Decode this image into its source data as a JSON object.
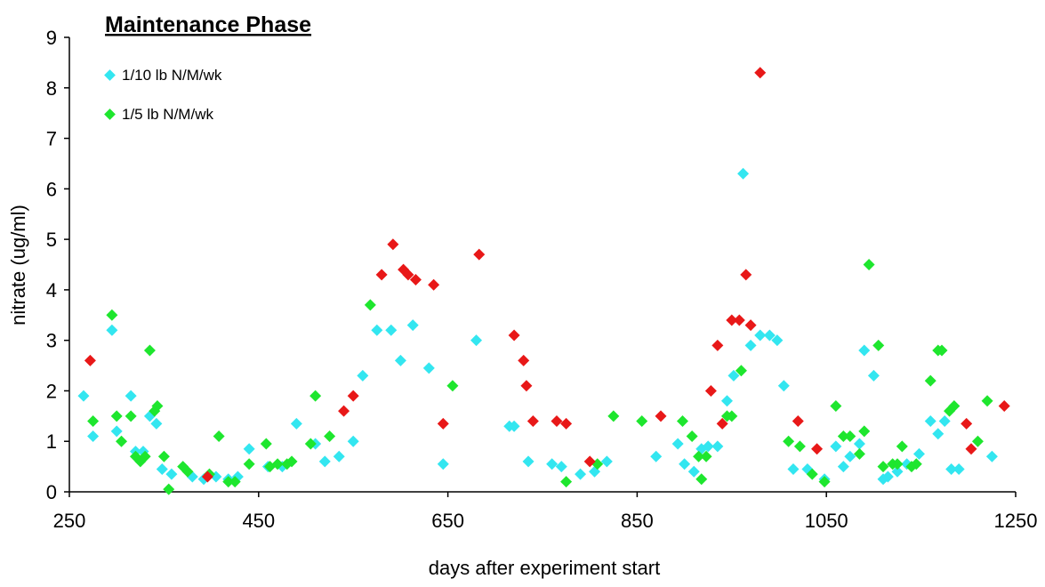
{
  "chart_data": {
    "type": "scatter",
    "title": "Maintenance Phase",
    "xlabel": "days after experiment start",
    "ylabel": "nitrate (ug/ml)",
    "xlim": [
      250,
      1250
    ],
    "ylim": [
      0,
      9
    ],
    "x_ticks": [
      "250",
      "450",
      "650",
      "850",
      "1050",
      "1250"
    ],
    "y_ticks": [
      "0",
      "1",
      "2",
      "3",
      "4",
      "5",
      "6",
      "7",
      "8",
      "9"
    ],
    "grid": false,
    "legend_position": "top-left",
    "series": [
      {
        "name": "1/10 lb N/M/wk",
        "color": "#33e6f0",
        "points": [
          [
            265,
            1.9
          ],
          [
            275,
            1.1
          ],
          [
            295,
            3.2
          ],
          [
            300,
            1.2
          ],
          [
            315,
            1.9
          ],
          [
            320,
            0.8
          ],
          [
            328,
            0.8
          ],
          [
            335,
            1.5
          ],
          [
            342,
            1.35
          ],
          [
            348,
            0.45
          ],
          [
            358,
            0.35
          ],
          [
            380,
            0.3
          ],
          [
            392,
            0.25
          ],
          [
            405,
            0.3
          ],
          [
            418,
            0.25
          ],
          [
            428,
            0.3
          ],
          [
            440,
            0.85
          ],
          [
            460,
            0.5
          ],
          [
            475,
            0.5
          ],
          [
            490,
            1.35
          ],
          [
            510,
            0.95
          ],
          [
            520,
            0.6
          ],
          [
            535,
            0.7
          ],
          [
            550,
            1.0
          ],
          [
            560,
            2.3
          ],
          [
            575,
            3.2
          ],
          [
            590,
            3.2
          ],
          [
            600,
            2.6
          ],
          [
            613,
            3.3
          ],
          [
            630,
            2.45
          ],
          [
            645,
            0.55
          ],
          [
            680,
            3.0
          ],
          [
            715,
            1.3
          ],
          [
            720,
            1.3
          ],
          [
            735,
            0.6
          ],
          [
            760,
            0.55
          ],
          [
            770,
            0.5
          ],
          [
            790,
            0.35
          ],
          [
            805,
            0.4
          ],
          [
            818,
            0.6
          ],
          [
            870,
            0.7
          ],
          [
            893,
            0.95
          ],
          [
            900,
            0.55
          ],
          [
            910,
            0.4
          ],
          [
            918,
            0.85
          ],
          [
            925,
            0.9
          ],
          [
            935,
            0.9
          ],
          [
            945,
            1.8
          ],
          [
            952,
            2.3
          ],
          [
            962,
            6.3
          ],
          [
            970,
            2.9
          ],
          [
            980,
            3.1
          ],
          [
            990,
            3.1
          ],
          [
            998,
            3.0
          ],
          [
            1005,
            2.1
          ],
          [
            1015,
            0.45
          ],
          [
            1030,
            0.45
          ],
          [
            1048,
            0.25
          ],
          [
            1060,
            0.9
          ],
          [
            1068,
            0.5
          ],
          [
            1075,
            0.7
          ],
          [
            1085,
            0.95
          ],
          [
            1090,
            2.8
          ],
          [
            1100,
            2.3
          ],
          [
            1110,
            0.25
          ],
          [
            1115,
            0.3
          ],
          [
            1125,
            0.4
          ],
          [
            1135,
            0.55
          ],
          [
            1148,
            0.75
          ],
          [
            1160,
            1.4
          ],
          [
            1168,
            1.15
          ],
          [
            1175,
            1.4
          ],
          [
            1182,
            0.45
          ],
          [
            1190,
            0.45
          ],
          [
            1225,
            0.7
          ]
        ]
      },
      {
        "name": "1/5 lb N/M/wk",
        "color": "#1ee62e",
        "points": [
          [
            275,
            1.4
          ],
          [
            295,
            3.5
          ],
          [
            300,
            1.5
          ],
          [
            305,
            1.0
          ],
          [
            315,
            1.5
          ],
          [
            320,
            0.7
          ],
          [
            325,
            0.6
          ],
          [
            330,
            0.7
          ],
          [
            335,
            2.8
          ],
          [
            340,
            1.6
          ],
          [
            343,
            1.7
          ],
          [
            350,
            0.7
          ],
          [
            355,
            0.05
          ],
          [
            370,
            0.5
          ],
          [
            375,
            0.4
          ],
          [
            398,
            0.35
          ],
          [
            408,
            1.1
          ],
          [
            418,
            0.2
          ],
          [
            425,
            0.2
          ],
          [
            440,
            0.55
          ],
          [
            458,
            0.95
          ],
          [
            462,
            0.5
          ],
          [
            470,
            0.55
          ],
          [
            480,
            0.55
          ],
          [
            485,
            0.6
          ],
          [
            505,
            0.95
          ],
          [
            510,
            1.9
          ],
          [
            525,
            1.1
          ],
          [
            568,
            3.7
          ],
          [
            655,
            2.1
          ],
          [
            775,
            0.2
          ],
          [
            808,
            0.55
          ],
          [
            825,
            1.5
          ],
          [
            855,
            1.4
          ],
          [
            898,
            1.4
          ],
          [
            908,
            1.1
          ],
          [
            915,
            0.7
          ],
          [
            918,
            0.25
          ],
          [
            923,
            0.7
          ],
          [
            945,
            1.5
          ],
          [
            950,
            1.5
          ],
          [
            960,
            2.4
          ],
          [
            1010,
            1.0
          ],
          [
            1022,
            0.9
          ],
          [
            1035,
            0.35
          ],
          [
            1048,
            0.2
          ],
          [
            1060,
            1.7
          ],
          [
            1068,
            1.1
          ],
          [
            1075,
            1.1
          ],
          [
            1085,
            0.75
          ],
          [
            1090,
            1.2
          ],
          [
            1095,
            4.5
          ],
          [
            1105,
            2.9
          ],
          [
            1110,
            0.5
          ],
          [
            1120,
            0.55
          ],
          [
            1125,
            0.55
          ],
          [
            1130,
            0.9
          ],
          [
            1140,
            0.5
          ],
          [
            1145,
            0.55
          ],
          [
            1160,
            2.2
          ],
          [
            1168,
            2.8
          ],
          [
            1172,
            2.8
          ],
          [
            1180,
            1.6
          ],
          [
            1185,
            1.7
          ],
          [
            1210,
            1.0
          ],
          [
            1220,
            1.8
          ]
        ]
      },
      {
        "name": "",
        "color": "#e81818",
        "points": [
          [
            272,
            2.6
          ],
          [
            396,
            0.3
          ],
          [
            540,
            1.6
          ],
          [
            550,
            1.9
          ],
          [
            580,
            4.3
          ],
          [
            592,
            4.9
          ],
          [
            603,
            4.4
          ],
          [
            608,
            4.3
          ],
          [
            616,
            4.2
          ],
          [
            635,
            4.1
          ],
          [
            645,
            1.35
          ],
          [
            683,
            4.7
          ],
          [
            720,
            3.1
          ],
          [
            730,
            2.6
          ],
          [
            733,
            2.1
          ],
          [
            740,
            1.4
          ],
          [
            765,
            1.4
          ],
          [
            775,
            1.35
          ],
          [
            800,
            0.6
          ],
          [
            875,
            1.5
          ],
          [
            928,
            2.0
          ],
          [
            935,
            2.9
          ],
          [
            940,
            1.35
          ],
          [
            950,
            3.4
          ],
          [
            958,
            3.4
          ],
          [
            965,
            4.3
          ],
          [
            970,
            3.3
          ],
          [
            980,
            8.3
          ],
          [
            1020,
            1.4
          ],
          [
            1040,
            0.85
          ],
          [
            1198,
            1.35
          ],
          [
            1203,
            0.85
          ],
          [
            1238,
            1.7
          ]
        ]
      }
    ]
  }
}
